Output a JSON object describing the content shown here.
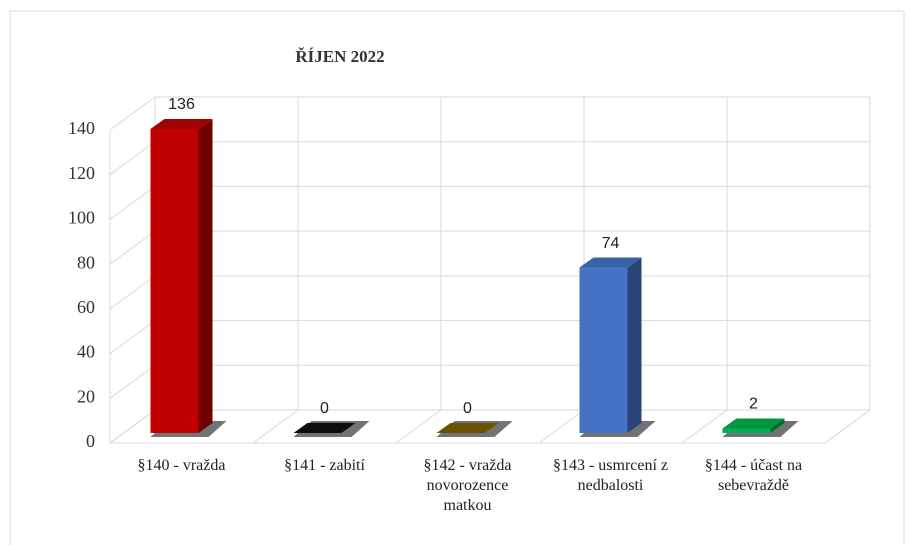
{
  "chart_data": {
    "type": "bar3d",
    "title": "ŘÍJEN 2022",
    "categories": [
      "§140 - vražda",
      "§141 - zabití",
      "§142 - vražda novorozence matkou",
      "§143 - usmrcení z nedbalosti",
      "§144 - účast na sebevraždě"
    ],
    "values": [
      136,
      0,
      0,
      74,
      2
    ],
    "colors": [
      "#c00000",
      "#111111",
      "#7f6000",
      "#4472c4",
      "#00b050"
    ],
    "ylim": [
      0,
      140
    ],
    "yticks": [
      0,
      20,
      40,
      60,
      80,
      100,
      120,
      140
    ],
    "grid": true,
    "data_labels": true
  }
}
